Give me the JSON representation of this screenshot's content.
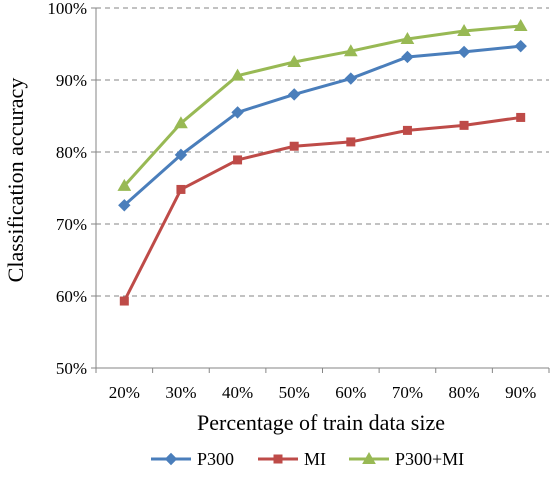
{
  "chart_data": {
    "type": "line",
    "categories": [
      "20%",
      "30%",
      "40%",
      "50%",
      "60%",
      "70%",
      "80%",
      "90%"
    ],
    "series": [
      {
        "name": "P300",
        "values": [
          72.6,
          79.6,
          85.5,
          88.0,
          90.2,
          93.2,
          93.9,
          94.7
        ],
        "color": "#4a7ebb",
        "marker": "diamond"
      },
      {
        "name": "MI",
        "values": [
          59.3,
          74.8,
          78.9,
          80.8,
          81.4,
          83.0,
          83.7,
          84.8
        ],
        "color": "#be4b48",
        "marker": "square"
      },
      {
        "name": "P300+MI",
        "values": [
          75.3,
          84.0,
          90.6,
          92.5,
          94.0,
          95.7,
          96.8,
          97.5
        ],
        "color": "#98b954",
        "marker": "triangle"
      }
    ],
    "xlabel": "Percentage of train data size",
    "ylabel": "Classification accuracy",
    "ylim": [
      50,
      100
    ],
    "yticks": [
      50,
      60,
      70,
      80,
      90,
      100
    ],
    "ytick_labels": [
      "50%",
      "60%",
      "70%",
      "80%",
      "90%",
      "100%"
    ],
    "grid": "horizontal dashed",
    "legend": "bottom"
  }
}
